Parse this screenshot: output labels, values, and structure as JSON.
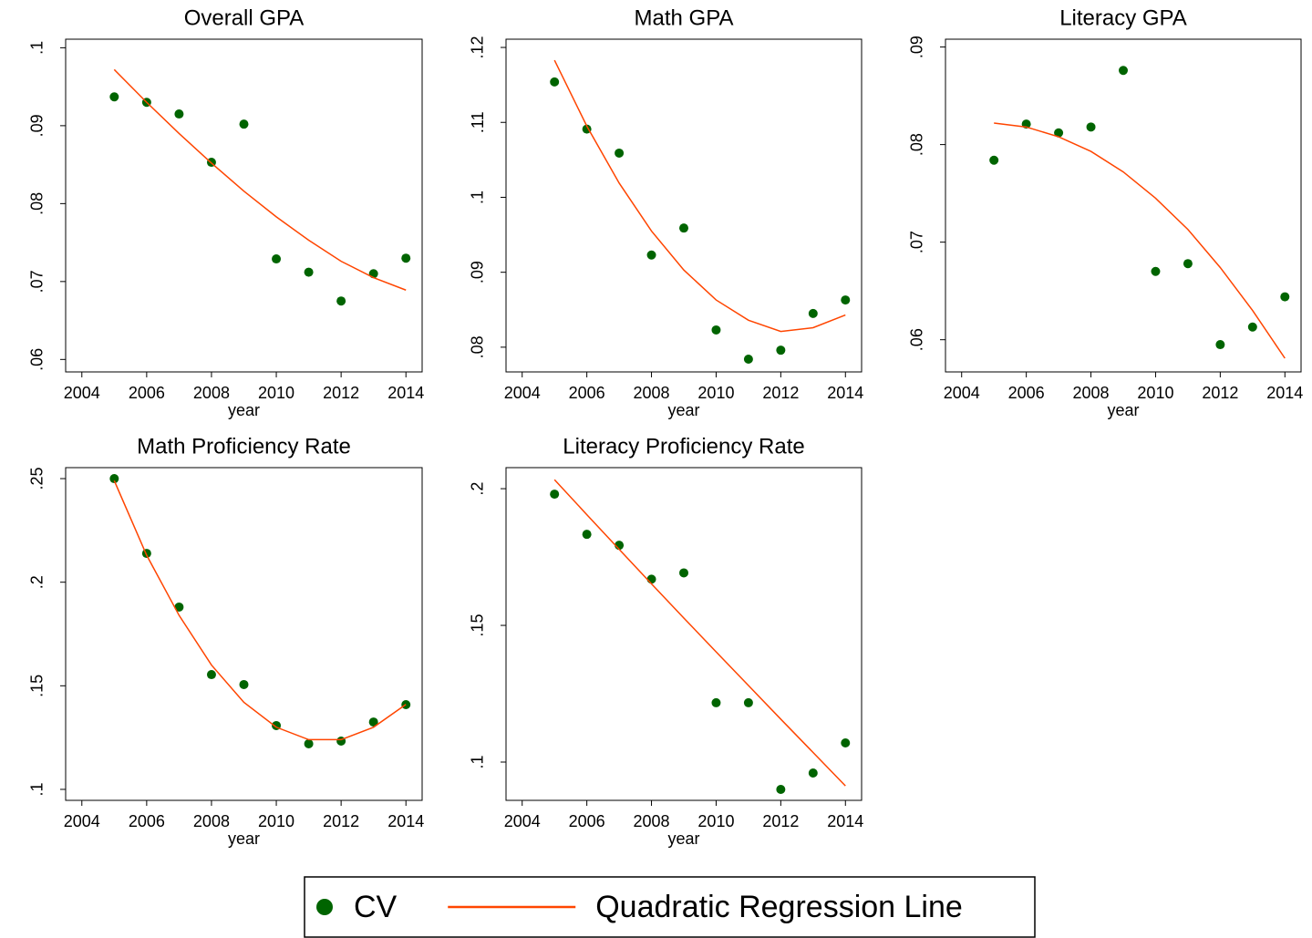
{
  "chart_data": [
    {
      "type": "scatter",
      "title": "Overall GPA",
      "xlabel": "year",
      "x": [
        2005,
        2006,
        2007,
        2008,
        2009,
        2010,
        2011,
        2012,
        2013,
        2014
      ],
      "series": [
        {
          "color": "#006400",
          "values": [
            0.0937,
            0.093,
            0.0915,
            0.0853,
            0.0902,
            0.0729,
            0.0712,
            0.0675,
            0.071,
            0.073
          ]
        },
        {
          "color": "#ff4500",
          "style": "line",
          "values": [
            0.0972,
            0.093,
            0.089,
            0.0852,
            0.0816,
            0.0783,
            0.0753,
            0.0726,
            0.0705,
            0.0689
          ]
        }
      ],
      "xlim": [
        2003.5,
        2014.5
      ],
      "xticks": [
        2004,
        2006,
        2008,
        2010,
        2012,
        2014
      ],
      "ylim": [
        0.0584,
        0.1011
      ],
      "yticks": [
        {
          "value": 0.06,
          "label": ".06"
        },
        {
          "value": 0.07,
          "label": ".07"
        },
        {
          "value": 0.08,
          "label": ".08"
        },
        {
          "value": 0.09,
          "label": ".09"
        },
        {
          "value": 0.1,
          "label": ".1"
        }
      ]
    },
    {
      "type": "scatter",
      "title": "Math GPA",
      "xlabel": "year",
      "x": [
        2005,
        2006,
        2007,
        2008,
        2009,
        2010,
        2011,
        2012,
        2013,
        2014
      ],
      "series": [
        {
          "color": "#006400",
          "values": [
            0.1154,
            0.1091,
            0.1059,
            0.0923,
            0.0959,
            0.0823,
            0.0784,
            0.0796,
            0.0845,
            0.0863
          ]
        },
        {
          "color": "#ff4500",
          "style": "line",
          "values": [
            0.1183,
            0.1095,
            0.1019,
            0.0955,
            0.0903,
            0.0863,
            0.0836,
            0.0821,
            0.0826,
            0.0843
          ]
        }
      ],
      "xlim": [
        2003.5,
        2014.5
      ],
      "xticks": [
        2004,
        2006,
        2008,
        2010,
        2012,
        2014
      ],
      "ylim": [
        0.0767,
        0.1211
      ],
      "yticks": [
        {
          "value": 0.08,
          "label": ".08"
        },
        {
          "value": 0.09,
          "label": ".09"
        },
        {
          "value": 0.1,
          "label": ".1"
        },
        {
          "value": 0.11,
          "label": ".11"
        },
        {
          "value": 0.12,
          "label": ".12"
        }
      ]
    },
    {
      "type": "scatter",
      "title": "Literacy GPA",
      "xlabel": "year",
      "x": [
        2005,
        2006,
        2007,
        2008,
        2009,
        2010,
        2011,
        2012,
        2013,
        2014
      ],
      "series": [
        {
          "color": "#006400",
          "values": [
            0.0784,
            0.0821,
            0.0812,
            0.0818,
            0.0876,
            0.067,
            0.0678,
            0.0595,
            0.0613,
            0.0644
          ]
        },
        {
          "color": "#ff4500",
          "style": "line",
          "values": [
            0.0822,
            0.0818,
            0.0808,
            0.0793,
            0.0772,
            0.0745,
            0.0713,
            0.0674,
            0.063,
            0.0581
          ]
        }
      ],
      "xlim": [
        2003.5,
        2014.5
      ],
      "xticks": [
        2004,
        2006,
        2008,
        2010,
        2012,
        2014
      ],
      "ylim": [
        0.0567,
        0.0908
      ],
      "yticks": [
        {
          "value": 0.06,
          "label": ".06"
        },
        {
          "value": 0.07,
          "label": ".07"
        },
        {
          "value": 0.08,
          "label": ".08"
        },
        {
          "value": 0.09,
          "label": ".09"
        }
      ]
    },
    {
      "type": "scatter",
      "title": "Math Proficiency Rate",
      "xlabel": "year",
      "x": [
        2005,
        2006,
        2007,
        2008,
        2009,
        2010,
        2011,
        2012,
        2013,
        2014
      ],
      "series": [
        {
          "color": "#006400",
          "values": [
            0.25,
            0.2139,
            0.188,
            0.1554,
            0.1506,
            0.1308,
            0.122,
            0.1233,
            0.1325,
            0.1409
          ]
        },
        {
          "color": "#ff4500",
          "style": "line",
          "values": [
            0.249,
            0.213,
            0.184,
            0.16,
            0.142,
            0.13,
            0.124,
            0.124,
            0.13,
            0.141
          ]
        }
      ],
      "xlim": [
        2003.5,
        2014.5
      ],
      "xticks": [
        2004,
        2006,
        2008,
        2010,
        2012,
        2014
      ],
      "ylim": [
        0.0947,
        0.2553
      ],
      "yticks": [
        {
          "value": 0.1,
          "label": ".1"
        },
        {
          "value": 0.15,
          "label": ".15"
        },
        {
          "value": 0.2,
          "label": ".2"
        },
        {
          "value": 0.25,
          "label": ".25"
        }
      ]
    },
    {
      "type": "scatter",
      "title": "Literacy Proficiency Rate",
      "xlabel": "year",
      "x": [
        2005,
        2006,
        2007,
        2008,
        2009,
        2010,
        2011,
        2012,
        2013,
        2014
      ],
      "series": [
        {
          "color": "#006400",
          "values": [
            0.198,
            0.1833,
            0.1793,
            0.1669,
            0.1692,
            0.1217,
            0.1217,
            0.09,
            0.096,
            0.107
          ]
        },
        {
          "color": "#ff4500",
          "style": "line",
          "values": [
            0.2033,
            0.1905,
            0.1778,
            0.1652,
            0.1527,
            0.1403,
            0.128,
            0.1157,
            0.1035,
            0.0913
          ]
        }
      ],
      "xlim": [
        2003.5,
        2014.5
      ],
      "xticks": [
        2004,
        2006,
        2008,
        2010,
        2012,
        2014
      ],
      "ylim": [
        0.086,
        0.2077
      ],
      "yticks": [
        {
          "value": 0.1,
          "label": ".1"
        },
        {
          "value": 0.15,
          "label": ".15"
        },
        {
          "value": 0.2,
          "label": ".2"
        }
      ]
    }
  ],
  "legend": [
    {
      "name": "CV",
      "color": "#006400",
      "mark": "point"
    },
    {
      "name": "Quadratic Regression Line",
      "color": "#ff4500",
      "mark": "line"
    }
  ]
}
